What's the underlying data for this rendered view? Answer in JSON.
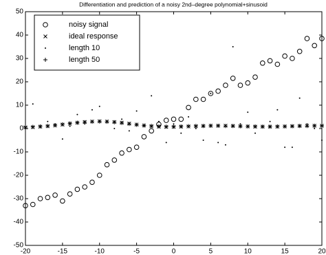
{
  "chart_data": {
    "type": "scatter",
    "title": "Differentiation and prediction of a noisy 2nd–degree polynomial+sinusoid",
    "x": [
      -20,
      -19,
      -18,
      -17,
      -16,
      -15,
      -14,
      -13,
      -12,
      -11,
      -10,
      -9,
      -8,
      -7,
      -6,
      -5,
      -4,
      -3,
      -2,
      -1,
      0,
      1,
      2,
      3,
      4,
      5,
      6,
      7,
      8,
      9,
      10,
      11,
      12,
      13,
      14,
      15,
      16,
      17,
      18,
      19,
      20
    ],
    "series": [
      {
        "name": "noisy signal",
        "color": "#000000",
        "marker": "o",
        "values": [
          -33,
          -32.5,
          -30,
          -29.5,
          -28.5,
          -31,
          -28,
          -26,
          -25,
          -23,
          -20,
          -15.5,
          -13.5,
          -10.5,
          -9,
          -8,
          -3.5,
          -1,
          1.8,
          3.5,
          4,
          4,
          9,
          12.5,
          12.5,
          15,
          16,
          18.5,
          21.5,
          18.5,
          19.5,
          22,
          28,
          29,
          27.5,
          31,
          30,
          33,
          38.5,
          35.5,
          38.5
        ]
      },
      {
        "name": "ideal response",
        "color": "#000000",
        "marker": "x",
        "values": [
          0.5,
          0.6,
          0.8,
          1,
          1.3,
          1.7,
          2.1,
          2.5,
          2.8,
          3,
          3.1,
          3,
          2.8,
          2.5,
          2.1,
          1.7,
          1.3,
          1,
          0.8,
          0.7,
          0.7,
          0.8,
          0.9,
          1,
          1.1,
          1.2,
          1.2,
          1.2,
          1.1,
          1,
          0.9,
          0.8,
          0.8,
          0.8,
          0.8,
          0.9,
          1,
          1.1,
          1.2,
          1.2,
          1.2
        ]
      },
      {
        "name": "length 10",
        "color": "#000000",
        "marker": ".",
        "values": [
          0,
          10.5,
          1,
          3,
          2,
          -4.5,
          1,
          6,
          2,
          8,
          9.5,
          3,
          0,
          4,
          -1,
          7.5,
          1,
          14,
          3,
          -6,
          2,
          -2,
          5,
          0,
          -5,
          15,
          -6,
          -7,
          35,
          2,
          7,
          -2,
          1,
          3,
          8,
          -8,
          -8,
          13,
          2,
          0,
          -5
        ]
      },
      {
        "name": "length 50",
        "color": "#000000",
        "marker": "+",
        "values": [
          0.6,
          0.7,
          0.9,
          1.1,
          1.4,
          1.8,
          2.2,
          2.5,
          2.7,
          2.9,
          3,
          2.9,
          2.7,
          2.4,
          2,
          1.6,
          1.3,
          1.1,
          0.9,
          0.8,
          0.8,
          0.9,
          1,
          1.1,
          1.1,
          1.2,
          1.2,
          1.1,
          1.1,
          1,
          0.9,
          0.9,
          0.8,
          0.8,
          0.9,
          0.9,
          1,
          1.1,
          1.1,
          1.2,
          1.2
        ]
      }
    ],
    "xlim": [
      -20,
      20
    ],
    "xticks": [
      -20,
      -15,
      -10,
      -5,
      0,
      5,
      10,
      15,
      20
    ],
    "ylim": [
      -50,
      50
    ],
    "yticks": [
      -50,
      -40,
      -30,
      -20,
      -10,
      0,
      10,
      20,
      30,
      40,
      50
    ],
    "grid": false,
    "legend": "upper left"
  }
}
